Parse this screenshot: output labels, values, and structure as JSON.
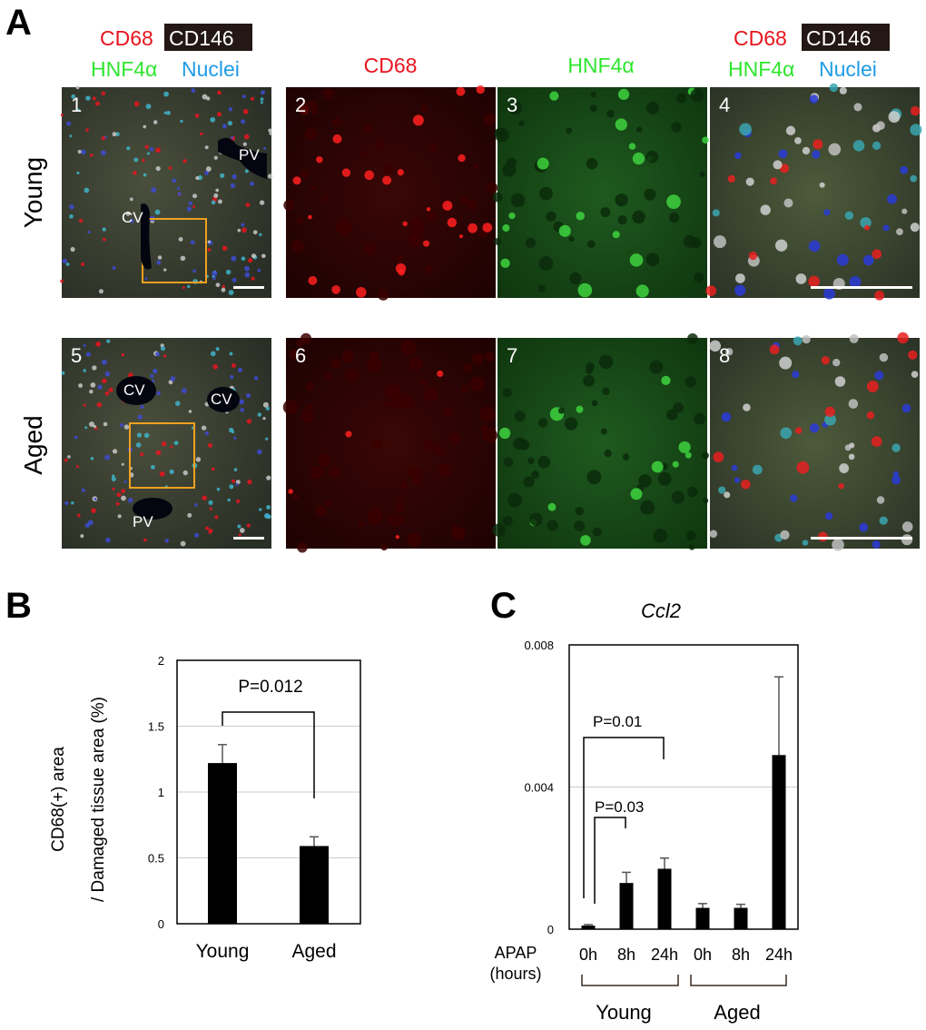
{
  "panel_labels": {
    "a": "A",
    "b": "B",
    "c": "C"
  },
  "figure_a": {
    "headers": {
      "merge_line1": [
        "CD68",
        "CD146"
      ],
      "merge_line2": [
        "HNF4α",
        "Nuclei"
      ],
      "col2": "CD68",
      "col3": "HNF4α"
    },
    "rows": [
      "Young",
      "Aged"
    ],
    "panel_numbers": [
      "1",
      "2",
      "3",
      "4",
      "5",
      "6",
      "7",
      "8"
    ],
    "vessel_labels": {
      "young": [
        "CV",
        "PV"
      ],
      "aged": [
        "CV",
        "CV",
        "PV"
      ]
    },
    "colors": {
      "CD68": "#e8141e",
      "CD146": "#ffffff",
      "HNF4a": "#2ee62e",
      "Nuclei": "#1e9be6",
      "inset_box": "#f0a020"
    }
  },
  "chart_data": [
    {
      "type": "bar",
      "panel": "B",
      "categories": [
        "Young",
        "Aged"
      ],
      "values": [
        1.22,
        0.59
      ],
      "errors": [
        0.14,
        0.07
      ],
      "ylabel": [
        "CD68(+) area",
        "/ Damaged tissue area (%)"
      ],
      "ylim": [
        0,
        2
      ],
      "yticks": [
        "0",
        "0.5",
        "1",
        "1.5",
        "2"
      ],
      "grid": true,
      "annotations": [
        {
          "text": "P=0.012",
          "from": "Young",
          "to": "Aged"
        }
      ]
    },
    {
      "type": "bar",
      "panel": "C",
      "title": "Ccl2",
      "categories": [
        "0h",
        "8h",
        "24h",
        "0h",
        "8h",
        "24h"
      ],
      "groups": [
        "Young",
        "Aged"
      ],
      "values": [
        0.0001,
        0.0013,
        0.0017,
        0.0006,
        0.0006,
        0.0049
      ],
      "errors": [
        3e-05,
        0.0003,
        0.0003,
        0.00012,
        0.0001,
        0.0022
      ],
      "xlabel": [
        "APAP",
        "(hours)"
      ],
      "ylim": [
        0,
        0.008
      ],
      "yticks": [
        "0",
        "0.004",
        "0.008"
      ],
      "grid": true,
      "annotations": [
        {
          "text": "P=0.01",
          "from": "Young 0h",
          "to": "Young 24h"
        },
        {
          "text": "P=0.03",
          "from": "Young 0h",
          "to": "Young 8h"
        }
      ]
    }
  ]
}
